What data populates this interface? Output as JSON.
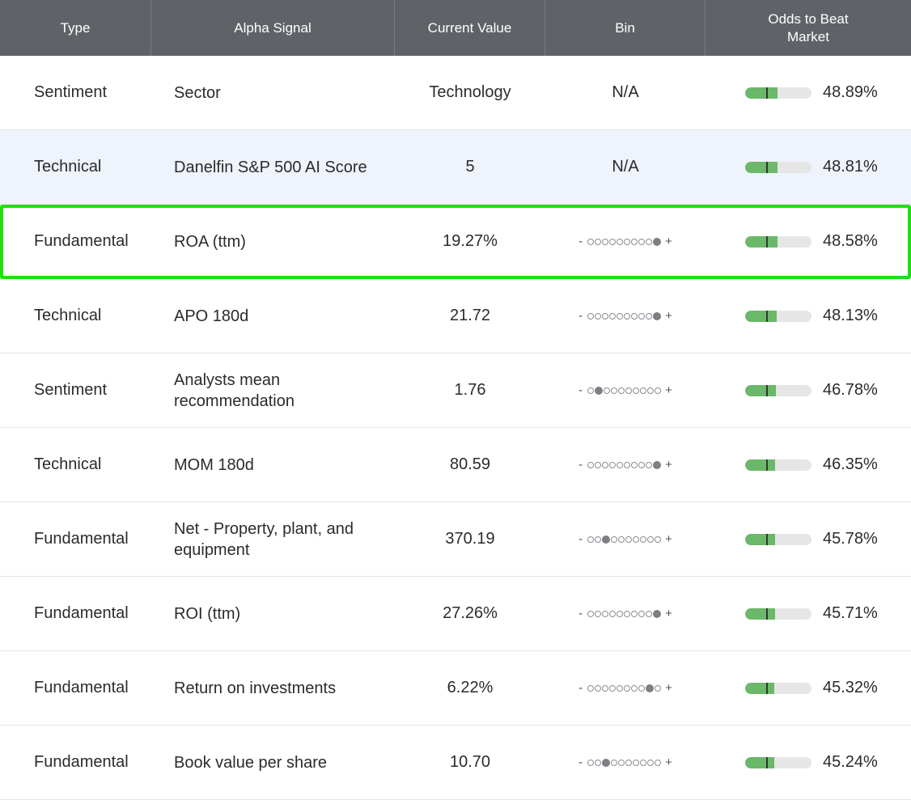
{
  "headers": {
    "type": "Type",
    "signal": "Alpha Signal",
    "value": "Current Value",
    "bin": "Bin",
    "odds": "Odds to Beat Market"
  },
  "colors": {
    "header_bg": "#5f6368",
    "bar_green": "#6bb86a",
    "highlight_row": "#eef3fc",
    "selected_outline": "#22dd11"
  },
  "rows": [
    {
      "type": "Sentiment",
      "signal": "Sector",
      "value": "Technology",
      "bin_na": "N/A",
      "bin_pos": null,
      "odds": "48.89%",
      "odds_pct": 48.89
    },
    {
      "type": "Technical",
      "signal": "Danelfin S&P 500 AI Score",
      "value": "5",
      "bin_na": "N/A",
      "bin_pos": null,
      "odds": "48.81%",
      "odds_pct": 48.81
    },
    {
      "type": "Fundamental",
      "signal": "ROA (ttm)",
      "value": "19.27%",
      "bin_pos": 10,
      "odds": "48.58%",
      "odds_pct": 48.58
    },
    {
      "type": "Technical",
      "signal": "APO 180d",
      "value": "21.72",
      "bin_pos": 10,
      "odds": "48.13%",
      "odds_pct": 48.13
    },
    {
      "type": "Sentiment",
      "signal": "Analysts mean recommendation",
      "value": "1.76",
      "bin_pos": 2,
      "odds": "46.78%",
      "odds_pct": 46.78
    },
    {
      "type": "Technical",
      "signal": "MOM 180d",
      "value": "80.59",
      "bin_pos": 10,
      "odds": "46.35%",
      "odds_pct": 46.35
    },
    {
      "type": "Fundamental",
      "signal": "Net - Property, plant, and equipment",
      "value": "370.19",
      "bin_pos": 3,
      "odds": "45.78%",
      "odds_pct": 45.78
    },
    {
      "type": "Fundamental",
      "signal": "ROI (ttm)",
      "value": "27.26%",
      "bin_pos": 10,
      "odds": "45.71%",
      "odds_pct": 45.71
    },
    {
      "type": "Fundamental",
      "signal": "Return on investments",
      "value": "6.22%",
      "bin_pos": 9,
      "odds": "45.32%",
      "odds_pct": 45.32
    },
    {
      "type": "Fundamental",
      "signal": "Book value per share",
      "value": "10.70",
      "bin_pos": 3,
      "odds": "45.24%",
      "odds_pct": 45.24
    }
  ],
  "bin_minus": "-",
  "bin_plus": "+",
  "bin_count": 10
}
